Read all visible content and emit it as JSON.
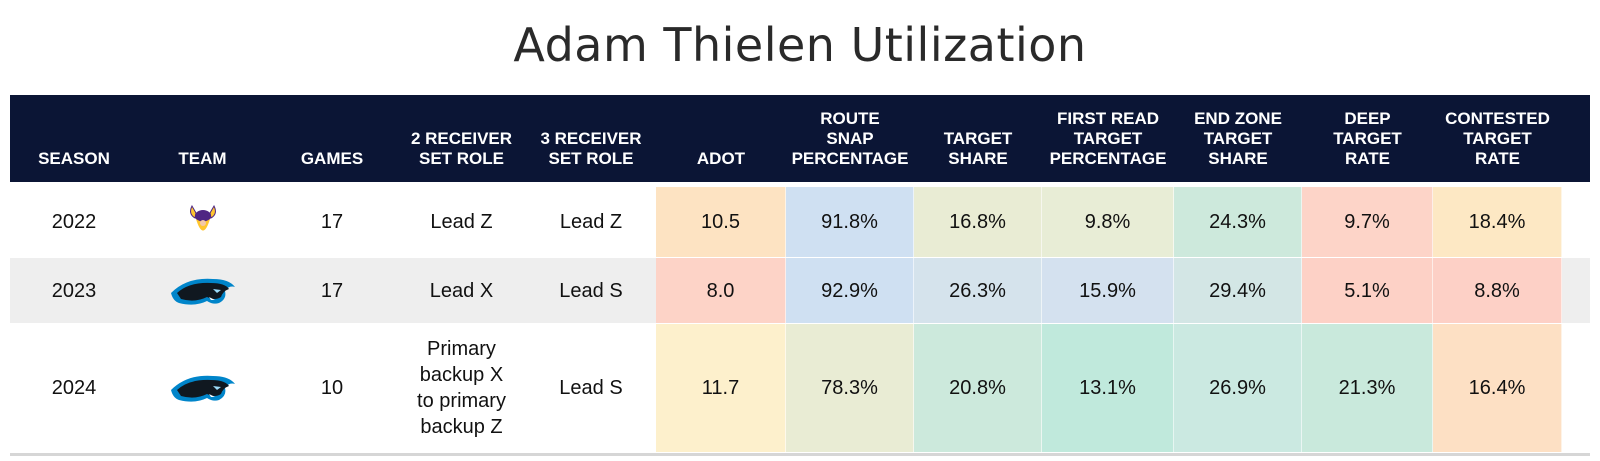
{
  "title": "Adam Thielen Utilization",
  "columns": [
    {
      "label": "SEASON"
    },
    {
      "label": "TEAM"
    },
    {
      "label": "GAMES"
    },
    {
      "label": "2 RECEIVER\nSET ROLE"
    },
    {
      "label": "3 RECEIVER\nSET ROLE"
    },
    {
      "label": "ADOT"
    },
    {
      "label": "ROUTE\nSNAP\nPERCENTAGE"
    },
    {
      "label": "TARGET\nSHARE"
    },
    {
      "label": "FIRST READ\nTARGET\nPERCENTAGE"
    },
    {
      "label": "END ZONE\nTARGET\nSHARE"
    },
    {
      "label": "DEEP\nTARGET\nRATE"
    },
    {
      "label": "CONTESTED\nTARGET\nRATE"
    }
  ],
  "rows": [
    {
      "season": "2022",
      "team_logo": "vikings-logo-icon",
      "games": "17",
      "role2": "Lead Z",
      "role3": "Lead Z",
      "stats": [
        "10.5",
        "91.8%",
        "16.8%",
        "9.8%",
        "24.3%",
        "9.7%",
        "18.4%"
      ],
      "colors": [
        "#fde3c2",
        "#cfe0f2",
        "#e9ecd4",
        "#e8edd6",
        "#cde9dc",
        "#fdd4c8",
        "#fde8c4"
      ]
    },
    {
      "season": "2023",
      "team_logo": "panthers-logo-icon",
      "games": "17",
      "role2": "Lead X",
      "role3": "Lead S",
      "stats": [
        "8.0",
        "92.9%",
        "26.3%",
        "15.9%",
        "29.4%",
        "5.1%",
        "8.8%"
      ],
      "colors": [
        "#fdd3c7",
        "#cfe0f2",
        "#d5e3ec",
        "#d4e1ef",
        "#d3e6e5",
        "#fdd1c6",
        "#fdd0c6"
      ]
    },
    {
      "season": "2024",
      "team_logo": "panthers-logo-icon",
      "games": "10",
      "role2": "Primary\nbackup X\nto primary\nbackup Z",
      "role3": "Lead S",
      "stats": [
        "11.7",
        "78.3%",
        "20.8%",
        "13.1%",
        "26.9%",
        "21.3%",
        "16.4%"
      ],
      "colors": [
        "#fdf0cc",
        "#e9ecd4",
        "#cce9dc",
        "#c0e9dc",
        "#cbe9e1",
        "#c9e9dc",
        "#fde0c4"
      ]
    }
  ]
}
